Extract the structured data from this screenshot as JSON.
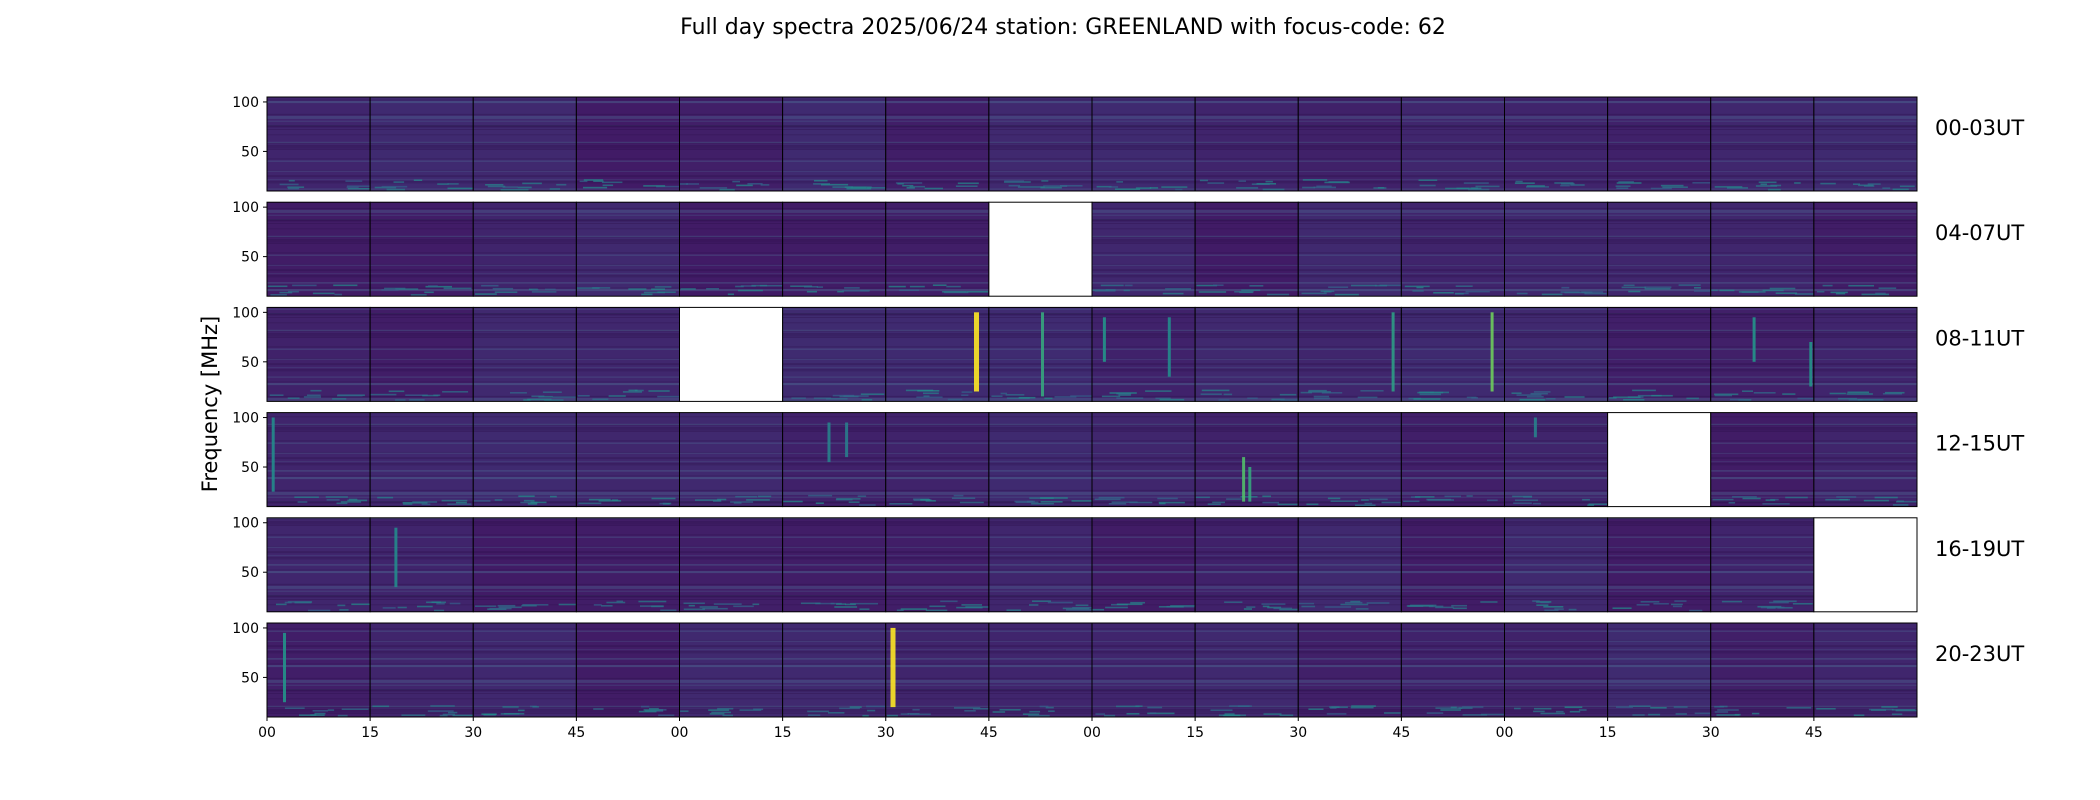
{
  "chart_data": {
    "type": "heatmap",
    "title": "Full day spectra 2025/06/24 station: GREENLAND with focus-code: 62",
    "ylabel": "Frequency [MHz]",
    "ylim": [
      10,
      105
    ],
    "y_ticks": [
      50,
      100
    ],
    "panels_per_row": 16,
    "panel_duration_min": 15,
    "x_tick_labels": [
      "00",
      "15",
      "30",
      "45",
      "00",
      "15",
      "30",
      "45",
      "00",
      "15",
      "30",
      "45",
      "00",
      "15",
      "30",
      "45"
    ],
    "colormap": "viridis",
    "rows": [
      {
        "label": "00-03UT",
        "missing_panels": [],
        "bursts": []
      },
      {
        "label": "04-07UT",
        "missing_panels": [
          7
        ],
        "bursts": []
      },
      {
        "label": "08-11UT",
        "missing_panels": [
          4
        ],
        "bursts": [
          {
            "panel": 6,
            "pos": 0.88,
            "fmin": 20,
            "fmax": 100,
            "intensity": 1.0
          },
          {
            "panel": 7,
            "pos": 0.52,
            "fmin": 15,
            "fmax": 100,
            "intensity": 0.45
          },
          {
            "panel": 8,
            "pos": 0.12,
            "fmin": 50,
            "fmax": 95,
            "intensity": 0.35
          },
          {
            "panel": 8,
            "pos": 0.75,
            "fmin": 35,
            "fmax": 95,
            "intensity": 0.3
          },
          {
            "panel": 10,
            "pos": 0.92,
            "fmin": 20,
            "fmax": 100,
            "intensity": 0.4
          },
          {
            "panel": 11,
            "pos": 0.88,
            "fmin": 20,
            "fmax": 100,
            "intensity": 0.7
          },
          {
            "panel": 14,
            "pos": 0.42,
            "fmin": 50,
            "fmax": 95,
            "intensity": 0.35
          },
          {
            "panel": 14,
            "pos": 0.97,
            "fmin": 25,
            "fmax": 70,
            "intensity": 0.35
          }
        ]
      },
      {
        "label": "12-15UT",
        "missing_panels": [
          13
        ],
        "bursts": [
          {
            "panel": 0,
            "pos": 0.06,
            "fmin": 25,
            "fmax": 100,
            "intensity": 0.3
          },
          {
            "panel": 5,
            "pos": 0.45,
            "fmin": 55,
            "fmax": 95,
            "intensity": 0.25
          },
          {
            "panel": 5,
            "pos": 0.62,
            "fmin": 60,
            "fmax": 95,
            "intensity": 0.22
          },
          {
            "panel": 9,
            "pos": 0.47,
            "fmin": 15,
            "fmax": 60,
            "intensity": 0.6
          },
          {
            "panel": 9,
            "pos": 0.53,
            "fmin": 15,
            "fmax": 50,
            "intensity": 0.45
          },
          {
            "panel": 12,
            "pos": 0.3,
            "fmin": 80,
            "fmax": 100,
            "intensity": 0.25
          }
        ]
      },
      {
        "label": "16-19UT",
        "missing_panels": [
          15
        ],
        "bursts": [
          {
            "panel": 1,
            "pos": 0.25,
            "fmin": 35,
            "fmax": 95,
            "intensity": 0.3
          }
        ]
      },
      {
        "label": "20-23UT",
        "missing_panels": [],
        "bursts": [
          {
            "panel": 0,
            "pos": 0.17,
            "fmin": 25,
            "fmax": 95,
            "intensity": 0.35
          },
          {
            "panel": 6,
            "pos": 0.07,
            "fmin": 20,
            "fmax": 100,
            "intensity": 1.0
          }
        ]
      }
    ]
  }
}
